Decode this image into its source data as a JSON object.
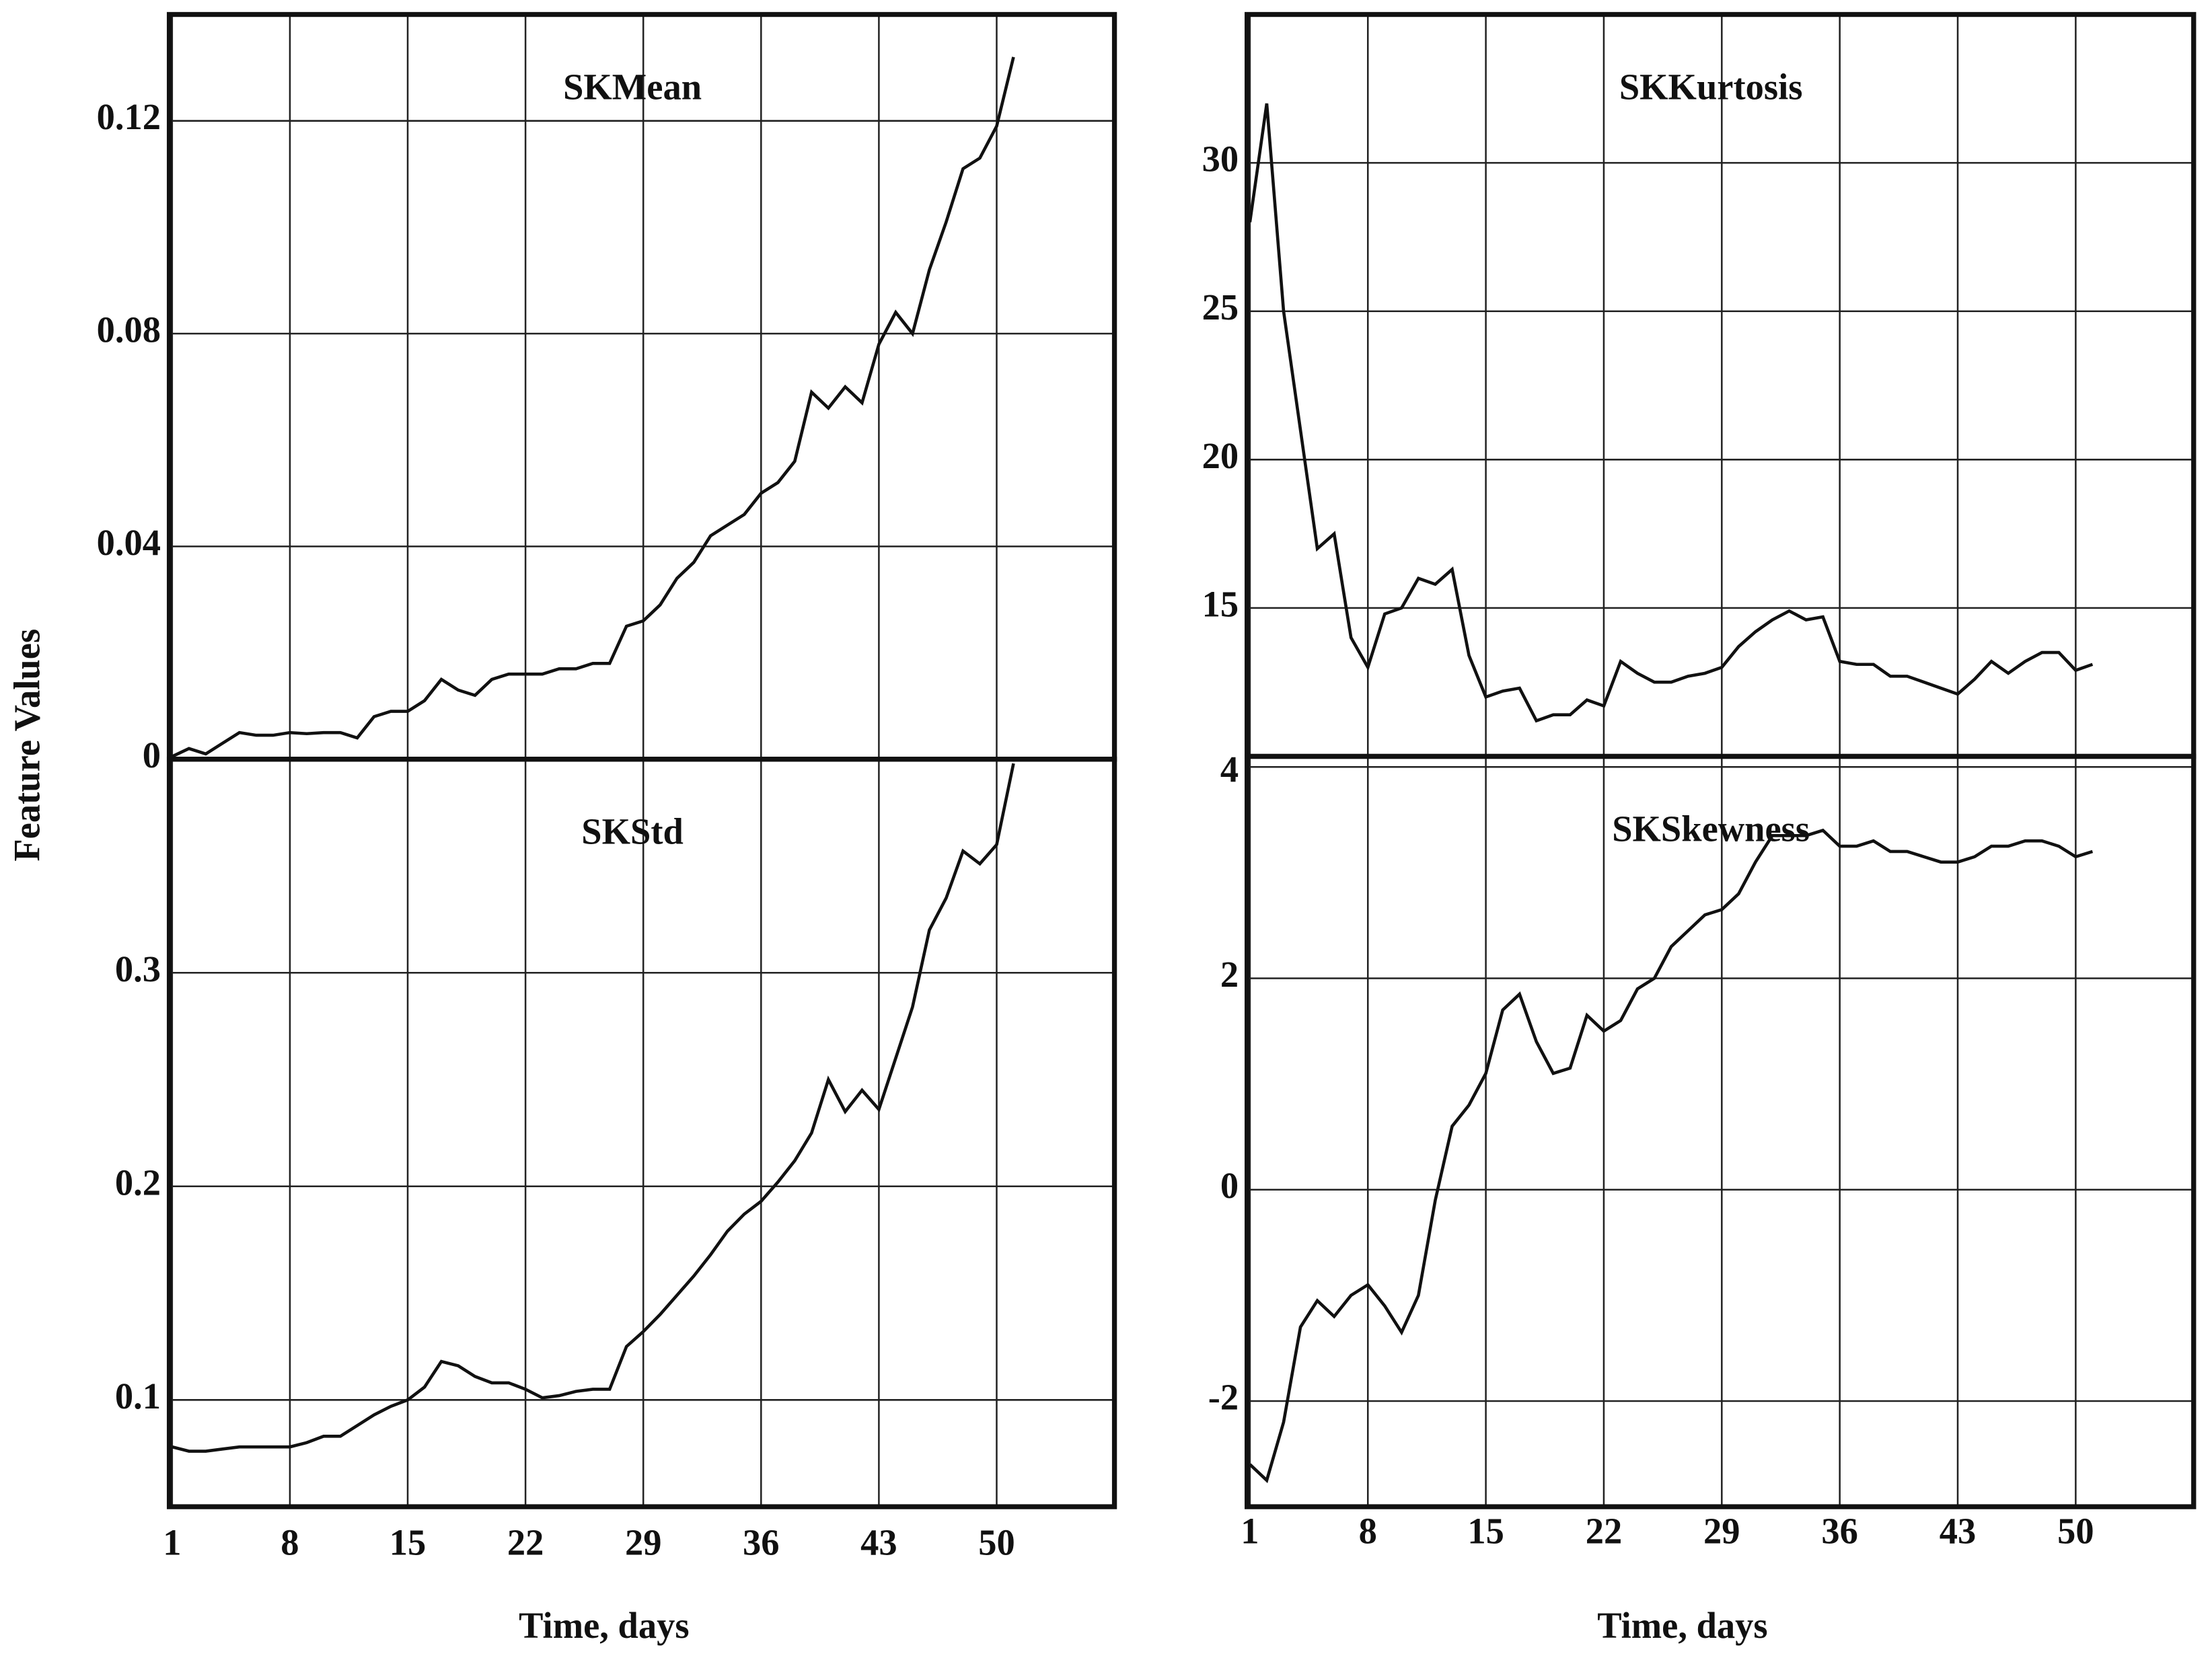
{
  "chart_data": [
    {
      "type": "line",
      "title": "SKMean",
      "y_label": "Feature Values",
      "x": [
        1,
        2,
        3,
        4,
        5,
        6,
        7,
        8,
        9,
        10,
        11,
        12,
        13,
        14,
        15,
        16,
        17,
        18,
        19,
        20,
        21,
        22,
        23,
        24,
        25,
        26,
        27,
        28,
        29,
        30,
        31,
        32,
        33,
        34,
        35,
        36,
        37,
        38,
        39,
        40,
        41,
        42,
        43,
        44,
        45,
        46,
        47,
        48,
        49,
        50,
        51
      ],
      "values": [
        0.0005,
        0.002,
        0.001,
        0.003,
        0.005,
        0.0045,
        0.0045,
        0.005,
        0.0048,
        0.005,
        0.005,
        0.004,
        0.008,
        0.009,
        0.009,
        0.011,
        0.015,
        0.013,
        0.012,
        0.015,
        0.016,
        0.016,
        0.016,
        0.017,
        0.017,
        0.018,
        0.018,
        0.025,
        0.026,
        0.029,
        0.034,
        0.037,
        0.042,
        0.044,
        0.046,
        0.05,
        0.052,
        0.056,
        0.069,
        0.066,
        0.07,
        0.067,
        0.078,
        0.084,
        0.08,
        0.092,
        0.101,
        0.111,
        0.113,
        0.119,
        0.132
      ],
      "color": "#111111",
      "xlim": [
        1,
        57
      ],
      "ylim": [
        0,
        0.14
      ],
      "yticks": [
        0,
        0.04,
        0.08,
        0.12
      ],
      "grid": true
    },
    {
      "type": "line",
      "title": "SKStd",
      "x_label": "Time, days",
      "x": [
        1,
        2,
        3,
        4,
        5,
        6,
        7,
        8,
        9,
        10,
        11,
        12,
        13,
        14,
        15,
        16,
        17,
        18,
        19,
        20,
        21,
        22,
        23,
        24,
        25,
        26,
        27,
        28,
        29,
        30,
        31,
        32,
        33,
        34,
        35,
        36,
        37,
        38,
        39,
        40,
        41,
        42,
        43,
        44,
        45,
        46,
        47,
        48,
        49,
        50,
        51
      ],
      "values": [
        0.078,
        0.076,
        0.076,
        0.077,
        0.078,
        0.078,
        0.078,
        0.078,
        0.08,
        0.083,
        0.083,
        0.088,
        0.093,
        0.097,
        0.1,
        0.106,
        0.118,
        0.116,
        0.111,
        0.108,
        0.108,
        0.105,
        0.101,
        0.102,
        0.104,
        0.105,
        0.105,
        0.125,
        0.132,
        0.14,
        0.149,
        0.158,
        0.168,
        0.179,
        0.187,
        0.193,
        0.202,
        0.212,
        0.225,
        0.25,
        0.235,
        0.245,
        0.236,
        0.26,
        0.284,
        0.32,
        0.335,
        0.357,
        0.351,
        0.36,
        0.398
      ],
      "color": "#111111",
      "xlim": [
        1,
        57
      ],
      "xticks": [
        1,
        8,
        15,
        22,
        29,
        36,
        43,
        50
      ],
      "ylim": [
        0.05,
        0.4
      ],
      "yticks": [
        0.1,
        0.2,
        0.3
      ],
      "grid": true
    },
    {
      "type": "line",
      "title": "SKKurtosis",
      "x": [
        1,
        2,
        3,
        4,
        5,
        6,
        7,
        8,
        9,
        10,
        11,
        12,
        13,
        14,
        15,
        16,
        17,
        18,
        19,
        20,
        21,
        22,
        23,
        24,
        25,
        26,
        27,
        28,
        29,
        30,
        31,
        32,
        33,
        34,
        35,
        36,
        37,
        38,
        39,
        40,
        41,
        42,
        43,
        44,
        45,
        46,
        47,
        48,
        49,
        50,
        51
      ],
      "values": [
        28,
        32,
        25,
        21,
        17,
        17.5,
        14,
        13,
        14.8,
        15,
        16,
        15.8,
        16.3,
        13.4,
        12,
        12.2,
        12.3,
        11.2,
        11.4,
        11.4,
        11.9,
        11.7,
        13.2,
        12.8,
        12.5,
        12.5,
        12.7,
        12.8,
        13,
        13.7,
        14.2,
        14.6,
        14.9,
        14.6,
        14.7,
        13.2,
        13.1,
        13.1,
        12.7,
        12.7,
        12.5,
        12.3,
        12.1,
        12.6,
        13.2,
        12.8,
        13.2,
        13.5,
        13.5,
        12.9,
        13.1
      ],
      "color": "#111111",
      "xlim": [
        1,
        57
      ],
      "ylim": [
        10,
        35
      ],
      "yticks": [
        15,
        20,
        25,
        30
      ],
      "grid": true
    },
    {
      "type": "line",
      "title": "SKSkewness",
      "x_label": "Time, days",
      "x": [
        1,
        2,
        3,
        4,
        5,
        6,
        7,
        8,
        9,
        10,
        11,
        12,
        13,
        14,
        15,
        16,
        17,
        18,
        19,
        20,
        21,
        22,
        23,
        24,
        25,
        26,
        27,
        28,
        29,
        30,
        31,
        32,
        33,
        34,
        35,
        36,
        37,
        38,
        39,
        40,
        41,
        42,
        43,
        44,
        45,
        46,
        47,
        48,
        49,
        50,
        51
      ],
      "values": [
        -2.6,
        -2.75,
        -2.2,
        -1.3,
        -1.05,
        -1.2,
        -1.0,
        -0.9,
        -1.1,
        -1.35,
        -1.0,
        -0.1,
        0.6,
        0.8,
        1.1,
        1.7,
        1.85,
        1.4,
        1.1,
        1.15,
        1.65,
        1.5,
        1.6,
        1.9,
        2.0,
        2.3,
        2.45,
        2.6,
        2.65,
        2.8,
        3.1,
        3.35,
        3.35,
        3.35,
        3.4,
        3.25,
        3.25,
        3.3,
        3.2,
        3.2,
        3.15,
        3.1,
        3.1,
        3.15,
        3.25,
        3.25,
        3.3,
        3.3,
        3.25,
        3.15,
        3.2
      ],
      "color": "#111111",
      "xlim": [
        1,
        57
      ],
      "xticks": [
        1,
        8,
        15,
        22,
        29,
        36,
        43,
        50
      ],
      "ylim": [
        -3,
        4.1
      ],
      "yticks": [
        -2,
        0,
        2,
        4
      ],
      "grid": true
    }
  ]
}
